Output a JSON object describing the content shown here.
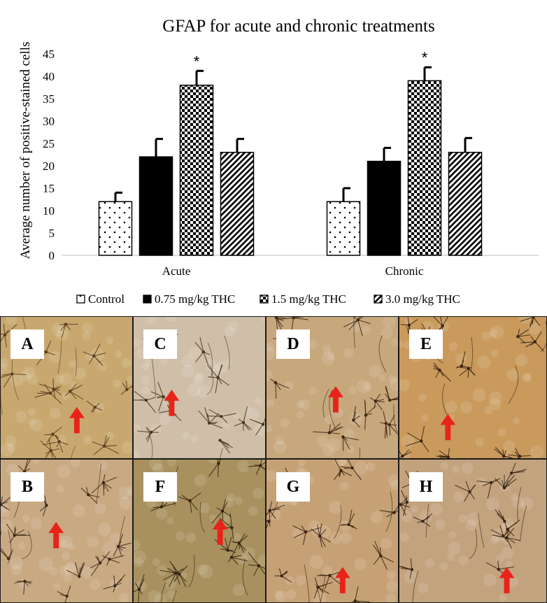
{
  "chart_data": {
    "type": "bar",
    "title": "GFAP for acute and chronic treatments",
    "xlabel": "",
    "ylabel": "Average number of positive-stained cells",
    "ylim": [
      0,
      45
    ],
    "yticks": [
      "0",
      "5",
      "10",
      "15",
      "20",
      "25",
      "30",
      "35",
      "40",
      "45"
    ],
    "categories": [
      "Acute",
      "Chronic"
    ],
    "legend_position": "bottom",
    "grid": false,
    "series": [
      {
        "name": "Control",
        "pattern": "dots",
        "values": [
          12,
          12
        ],
        "errors": [
          2,
          3
        ],
        "significance": [
          "",
          ""
        ]
      },
      {
        "name": "0.75 mg/kg THC",
        "pattern": "solid",
        "values": [
          22,
          21
        ],
        "errors": [
          4,
          3
        ],
        "significance": [
          "",
          ""
        ]
      },
      {
        "name": "1.5 mg/kg THC",
        "pattern": "checker",
        "values": [
          38,
          39
        ],
        "errors": [
          3.2,
          3
        ],
        "significance": [
          "*",
          "*"
        ]
      },
      {
        "name": "3.0 mg/kg THC",
        "pattern": "diagonal",
        "values": [
          23,
          23
        ],
        "errors": [
          3,
          3.2
        ],
        "significance": [
          "",
          ""
        ]
      }
    ]
  },
  "panels": [
    {
      "label": "A",
      "tone": "#c8a86e",
      "stain": "#5a3d1e"
    },
    {
      "label": "C",
      "tone": "#cfbfa8",
      "stain": "#4a3520"
    },
    {
      "label": "D",
      "tone": "#c7a77c",
      "stain": "#3e2814"
    },
    {
      "label": "E",
      "tone": "#c99a5c",
      "stain": "#3a2410"
    },
    {
      "label": "B",
      "tone": "#c9a982",
      "stain": "#3e2a18"
    },
    {
      "label": "F",
      "tone": "#a8915e",
      "stain": "#332412"
    },
    {
      "label": "G",
      "tone": "#c6a176",
      "stain": "#3a2312"
    },
    {
      "label": "H",
      "tone": "#c3a27e",
      "stain": "#3a2614"
    }
  ],
  "colors": {
    "arrow": "#e8231a",
    "bar_fill": "#000000",
    "background": "#ffffff"
  }
}
